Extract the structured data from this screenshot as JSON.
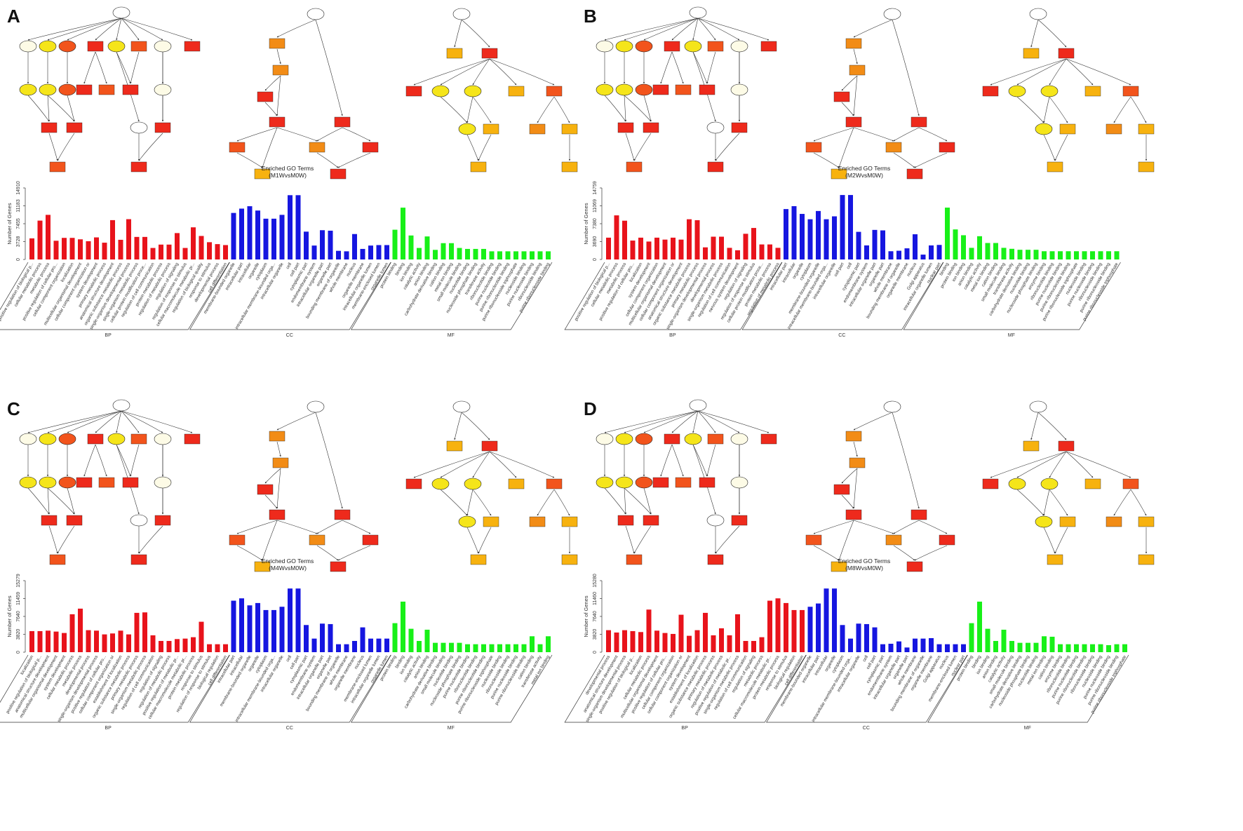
{
  "colors": {
    "BP": "#e8131b",
    "CC": "#1616e0",
    "MF": "#18f018",
    "node_red": "#ee2a1c",
    "node_orange_red": "#f2541c",
    "node_orange": "#f28c16",
    "node_amber": "#f7b20f",
    "node_yellow": "#f5e51a",
    "node_pale_yellow": "#fbf86a",
    "node_white": "#ffffff",
    "node_cream": "#fdfbe6",
    "edge": "#333333"
  },
  "group_labels": [
    "BP",
    "CC",
    "MF"
  ],
  "chart_data": [
    {
      "panel": "A",
      "type": "bar",
      "title": "Enriched GO Terms",
      "subtitle": "(M1WvsM0W)",
      "ylabel": "Number of Genes",
      "yticks": [
        0,
        3728,
        7455,
        11183,
        14910
      ],
      "ylim": [
        0,
        14910
      ],
      "groups": [
        {
          "name": "BP",
          "count": 25
        },
        {
          "name": "CC",
          "count": 20
        },
        {
          "name": "MF",
          "count": 20
        }
      ],
      "categories": [
        "positive regulation of biological p...",
        "cellular metabolic process",
        "metabolic process",
        "positive regulation of cellular pro...",
        "cellular component organization",
        "localization",
        "multicellular organismal development",
        "cellular component organization or",
        "system development",
        "primary metabolic process",
        "anatomical structure development",
        "organic substance metabolic process",
        "single-organism developmental process",
        "single-organism metabolic process",
        "cellular protein modification proce...",
        "regulation of cell communication",
        "protein metabolic process",
        "regulation of metabolic process",
        "regulation of signaling",
        "regulation of response to stimulus",
        "cellular macromolecule metabolic pr...",
        "regulation of biological quality",
        "response to stimulus",
        "developmental process",
        "cell differentiation",
        "membrane-bounded organelle",
        "intracellular part",
        "intracellular",
        "organelle",
        "cytoplasm",
        "intracellular membrane-bounded orga...",
        "intracellular organelle",
        "cell",
        "cell part",
        "cytoplasmic part",
        "endomembrane system",
        "intracellular organelle part",
        "organelle part",
        "bounding membrane of organelle",
        "whole membrane",
        "nucleus",
        "organelle membrane",
        "intracellular organelle lumen",
        "membrane-enclosed lumen",
        "organelle lumen",
        "protein binding",
        "binding",
        "ion binding",
        "catalytic activity",
        "anion binding",
        "carbohydrate derivative binding",
        "cation binding",
        "metal ion binding",
        "small molecule binding",
        "nucleotide binding",
        "nucleoside phosphate binding",
        "transferase activity",
        "ribonucleotide binding",
        "purine nucleotide binding",
        "purine ribonucleotide binding",
        "purine ribonucleoside triphosphate",
        "nucleoside binding",
        "purine nucleoside binding",
        "ribonucleoside binding",
        "purine ribonucleoside binding"
      ],
      "values": [
        4400,
        8100,
        9300,
        3900,
        4500,
        4500,
        4200,
        3800,
        4600,
        3500,
        8200,
        4100,
        8400,
        4700,
        4700,
        2400,
        3100,
        3100,
        5500,
        2400,
        6700,
        4900,
        3600,
        3200,
        3000,
        9700,
        10600,
        11100,
        10200,
        8500,
        8500,
        9300,
        13400,
        13400,
        5800,
        2900,
        6100,
        6000,
        1800,
        1700,
        5300,
        2200,
        2900,
        3000,
        3000,
        6200,
        10800,
        5000,
        2400,
        4800,
        2000,
        3400,
        3400,
        2400,
        2200,
        2200,
        2200,
        1700,
        1700,
        1700,
        1700,
        1700,
        1700,
        1700,
        1700
      ]
    },
    {
      "panel": "B",
      "type": "bar",
      "title": "Enriched GO Terms",
      "subtitle": "(M2WvsM0W)",
      "ylabel": "Number of Genes",
      "yticks": [
        0,
        3690,
        7380,
        11069,
        14759
      ],
      "ylim": [
        0,
        14759
      ],
      "groups": [
        {
          "name": "BP",
          "count": 22
        },
        {
          "name": "CC",
          "count": 20
        },
        {
          "name": "MF",
          "count": 22
        }
      ],
      "categories": [
        "positive regulation of biological p...",
        "cellular metabolic process",
        "metabolic process",
        "positive regulation of cellular pro...",
        "localization",
        "system development",
        "cellular component organization",
        "multicellular organismal development",
        "cellular component organization or",
        "anatomical structure development",
        "organic substance metabolic process",
        "primary metabolic process",
        "single-organism developmental process",
        "developmental process",
        "single-organism metabolic process",
        "regulation of cell communication",
        "nervous system development",
        "regulation of signaling",
        "regulation of response to stimulus",
        "cellular protein modification proce...",
        "protein metabolic process",
        "regulation of metabolic process",
        "intracellular part",
        "intracellular",
        "organelle",
        "cytoplasm",
        "membrane-bounded organelle",
        "intracellular membrane-bounded orga...",
        "intracellular organelle",
        "cell part",
        "cell",
        "cytoplasmic part",
        "endomembrane system",
        "intracellular organelle part",
        "organelle part",
        "whole membrane",
        "bounding membrane of organelle",
        "organelle membrane",
        "nucleus",
        "Golgi apparatus",
        "intracellular organelle lumen",
        "nuclear part",
        "binding",
        "protein binding",
        "ion binding",
        "anion binding",
        "catalytic activity",
        "metal ion binding",
        "cation binding",
        "small molecule binding",
        "transferase activity",
        "carbohydrate derivative binding",
        "nucleotide binding",
        "nucleoside phosphate binding",
        "enzyme binding",
        "ribonucleotide binding",
        "purine nucleotide binding",
        "purine ribonucleotide binding",
        "purine ribonucleoside triphosphate",
        "nucleoside binding",
        "purine nucleoside binding",
        "ribonucleoside binding",
        "purine ribonucleoside binding",
        "purine ribonucleoside triphosphate"
      ],
      "values": [
        4500,
        9100,
        8000,
        3900,
        4500,
        3700,
        4500,
        4100,
        4500,
        4100,
        8300,
        8100,
        2500,
        4700,
        4700,
        2400,
        1900,
        5300,
        6500,
        3100,
        3100,
        2400,
        10400,
        11000,
        9400,
        8300,
        10000,
        8300,
        8900,
        13300,
        13300,
        5700,
        2900,
        6100,
        6000,
        1700,
        1800,
        2300,
        5200,
        1000,
        2900,
        3000,
        10700,
        6200,
        5000,
        2400,
        4800,
        3400,
        3400,
        2400,
        2200,
        2000,
        2000,
        2000,
        1700,
        1700,
        1700,
        1700,
        1700,
        1700,
        1700,
        1700,
        1700,
        1700
      ]
    },
    {
      "panel": "C",
      "type": "bar",
      "title": "Enriched GO Terms",
      "subtitle": "(M4WvsM0W)",
      "ylabel": "Number of Genes",
      "yticks": [
        0,
        3820,
        7640,
        11459,
        15279
      ],
      "ylim": [
        0,
        15279
      ],
      "groups": [
        {
          "name": "BP",
          "count": 25
        },
        {
          "name": "CC",
          "count": 20
        },
        {
          "name": "MF",
          "count": 20
        }
      ],
      "categories": [
        "localization",
        "positive regulation of biological p...",
        "anatomical structure development",
        "multicellular organismal development",
        "system development",
        "cellular metabolic process",
        "metabolic process",
        "developmental process",
        "single-organism developmental process",
        "positive regulation of cellular pro...",
        "cellular component organization or",
        "establishment of localization",
        "organic substance metabolic process",
        "primary metabolic process",
        "single-organism metabolic process",
        "regulation of cell communication",
        "regulation of signaling",
        "regulation of metabolic process",
        "positive regulation of metabolic pr...",
        "cellular macromolecule metabolic pr...",
        "protein metabolic process",
        "response to stimulus",
        "regulation of response to stimulus",
        "biological regulation",
        "cell differentiation",
        "intracellular part",
        "intracellular",
        "membrane-bounded organelle",
        "organelle",
        "cytoplasm",
        "intracellular membrane-bounded orga...",
        "intracellular organelle",
        "cell",
        "cell part",
        "cytoplasmic part",
        "endomembrane system",
        "intracellular organelle part",
        "organelle part",
        "bounding membrane of organelle",
        "whole membrane",
        "organelle membrane",
        "nucleus",
        "membrane-enclosed lumen",
        "intracellular organelle lumen",
        "organelle lumen",
        "protein binding",
        "binding",
        "ion binding",
        "catalytic activity",
        "anion binding",
        "carbohydrate derivative binding",
        "small molecule binding",
        "nucleotide binding",
        "nucleoside phosphate binding",
        "purine nucleotide binding",
        "ribonucleotide binding",
        "purine ribonucleotide binding",
        "purine ribonucleoside triphosphate",
        "nucleoside binding",
        "ribonucleoside binding",
        "purine nucleoside binding",
        "purine ribonucleoside binding",
        "cation binding",
        "transferase activity",
        "metal ion binding"
      ],
      "values": [
        4500,
        4500,
        4600,
        4400,
        4100,
        8100,
        9300,
        4700,
        4600,
        3800,
        4000,
        4600,
        3800,
        8400,
        8500,
        3600,
        2400,
        2400,
        2800,
        2900,
        3200,
        6500,
        1700,
        1700,
        1700,
        11000,
        11500,
        10000,
        10500,
        9000,
        9000,
        9700,
        13600,
        13600,
        5800,
        2900,
        6100,
        6000,
        1700,
        1700,
        2400,
        5300,
        2900,
        2900,
        2900,
        6200,
        10800,
        5000,
        2400,
        4800,
        2000,
        2000,
        2000,
        2000,
        1700,
        1700,
        1700,
        1700,
        1700,
        1700,
        1700,
        1700,
        3400,
        1700,
        3400
      ]
    },
    {
      "panel": "D",
      "type": "bar",
      "title": "Enriched GO Terms",
      "subtitle": "(M8WvsM0W)",
      "ylabel": "Number of Genes",
      "yticks": [
        0,
        3820,
        7640,
        11460,
        15280
      ],
      "ylim": [
        0,
        15280
      ],
      "groups": [
        {
          "name": "BP",
          "count": 25
        },
        {
          "name": "CC",
          "count": 20
        },
        {
          "name": "MF",
          "count": 20
        }
      ],
      "categories": [
        "developmental process",
        "anatomical structure development",
        "single-organism developmental process",
        "positive regulation of biological p...",
        "localization",
        "cellular metabolic process",
        "multicellular organismal development",
        "positive regulation of cellular pro...",
        "cellular component organization",
        "cellular component organization or",
        "system development",
        "establishment of localization",
        "organic substance metabolic process",
        "primary metabolic process",
        "regulation of metabolic process",
        "positive regulation of metabolic pr...",
        "single-organism metabolic process",
        "regulation of cell communication",
        "regulation of signaling",
        "metabolic process",
        "cellular macromolecule metabolic pr...",
        "protein metabolic process",
        "response to stimulus",
        "biological regulation",
        "cell differentiation",
        "membrane-bounded organelle",
        "intracellular part",
        "intracellular",
        "organelle",
        "cytoplasm",
        "intracellular membrane-bounded orga...",
        "intracellular organelle",
        "cell",
        "cell part",
        "cytoplasmic part",
        "endomembrane system",
        "intracellular organelle part",
        "organelle part",
        "whole membrane",
        "bounding membrane of organelle",
        "organelle membrane",
        "Golgi apparatus",
        "nucleus",
        "membrane-enclosed lumen",
        "nuclear part",
        "protein binding",
        "binding",
        "ion binding",
        "anion binding",
        "catalytic activity",
        "small molecule binding",
        "carbohydrate derivative binding",
        "nucleoside phosphate binding",
        "nucleotide binding",
        "metal ion binding",
        "cation binding",
        "enzyme binding",
        "ribonucleotide binding",
        "purine nucleotide binding",
        "purine ribonucleotide binding",
        "ribonucleoside binding",
        "nucleoside binding",
        "purine nucleoside binding",
        "purine ribonucleoside binding",
        "purine ribonucleoside triphosphate"
      ],
      "values": [
        4700,
        4200,
        4700,
        4500,
        4300,
        9100,
        4600,
        4100,
        3900,
        8000,
        3500,
        4700,
        8400,
        3600,
        5100,
        3600,
        8100,
        2400,
        2400,
        3200,
        11000,
        11500,
        10500,
        9000,
        9000,
        9700,
        10400,
        13600,
        13600,
        5800,
        2900,
        6100,
        6000,
        5300,
        1700,
        1800,
        2300,
        1000,
        2900,
        2900,
        3000,
        1700,
        1700,
        1700,
        1700,
        6200,
        10800,
        5000,
        2400,
        4800,
        2400,
        2000,
        2000,
        2000,
        3400,
        3300,
        1700,
        1700,
        1700,
        1700,
        1700,
        1700,
        1500,
        1700,
        1700
      ]
    }
  ]
}
